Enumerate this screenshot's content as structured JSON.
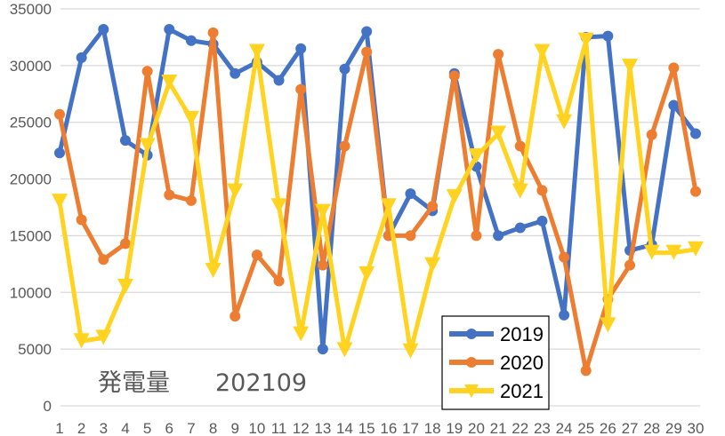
{
  "chart_data": {
    "type": "line",
    "title": "",
    "annotation": "発電量　 202109",
    "annotation_label": "発電量",
    "annotation_period": "202109",
    "xlabel": "",
    "ylabel": "",
    "ylim": [
      0,
      35000
    ],
    "yticks": [
      0,
      5000,
      10000,
      15000,
      20000,
      25000,
      30000,
      35000
    ],
    "grid": true,
    "legend_position": "lower-center-right",
    "x": [
      1,
      2,
      3,
      4,
      5,
      6,
      7,
      8,
      9,
      10,
      11,
      12,
      13,
      14,
      15,
      16,
      17,
      18,
      19,
      20,
      21,
      22,
      23,
      24,
      25,
      26,
      27,
      28,
      29,
      30
    ],
    "series": [
      {
        "name": "2019",
        "color": "#4472C4",
        "marker": "circle",
        "values": [
          22300,
          30700,
          33200,
          23400,
          22100,
          33200,
          32200,
          31900,
          29300,
          30300,
          28700,
          31500,
          5000,
          29700,
          33000,
          15000,
          18700,
          17200,
          29300,
          21100,
          15000,
          15700,
          16300,
          8000,
          32500,
          32600,
          13700,
          14200,
          26500,
          24000
        ]
      },
      {
        "name": "2020",
        "color": "#ED7D31",
        "marker": "circle",
        "values": [
          25700,
          16400,
          12900,
          14300,
          29500,
          18600,
          18100,
          32900,
          7900,
          13300,
          11000,
          27900,
          12400,
          22900,
          31200,
          15000,
          15000,
          17600,
          29100,
          15000,
          31000,
          22900,
          19000,
          13100,
          3100,
          9400,
          12400,
          23900,
          29800,
          18900
        ]
      },
      {
        "name": "2021",
        "color": "#FFD320",
        "marker": "triangle-down",
        "values": [
          18000,
          5700,
          6000,
          10500,
          22900,
          28500,
          25300,
          11900,
          18900,
          31200,
          17600,
          6300,
          17100,
          4900,
          11600,
          17600,
          4800,
          12400,
          18400,
          22000,
          24000,
          18900,
          31200,
          25000,
          32200,
          7100,
          29900,
          13500,
          13500,
          13800
        ]
      }
    ]
  },
  "legend": {
    "items": [
      {
        "label": "2019"
      },
      {
        "label": "2020"
      },
      {
        "label": "2021"
      }
    ]
  },
  "annotation": {
    "label": "発電量",
    "period": "202109"
  },
  "colors": {
    "grid": "#D9D9D9",
    "axis_text": "#595959"
  }
}
